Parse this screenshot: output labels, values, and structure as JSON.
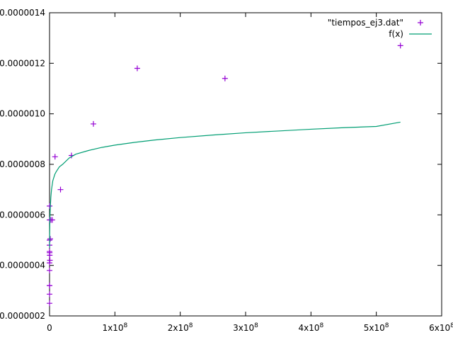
{
  "chart_data": {
    "type": "scatter",
    "title": "",
    "xlabel": "",
    "ylabel": "",
    "xlim": [
      0,
      600000000
    ],
    "ylim": [
      2e-07,
      1.4e-06
    ],
    "grid": false,
    "legend_position": "top-right",
    "x_ticks": [
      {
        "value": 0,
        "label": "0",
        "exp": ""
      },
      {
        "value": 100000000,
        "label": "1x10",
        "exp": "8"
      },
      {
        "value": 200000000,
        "label": "2x10",
        "exp": "8"
      },
      {
        "value": 300000000,
        "label": "3x10",
        "exp": "8"
      },
      {
        "value": 400000000,
        "label": "4x10",
        "exp": "8"
      },
      {
        "value": 500000000,
        "label": "5x10",
        "exp": "8"
      },
      {
        "value": 600000000,
        "label": "6x10",
        "exp": "8"
      }
    ],
    "y_ticks": [
      {
        "value": 2e-07,
        "label": "0.0000002"
      },
      {
        "value": 4e-07,
        "label": "0.0000004"
      },
      {
        "value": 6e-07,
        "label": "0.0000006"
      },
      {
        "value": 8e-07,
        "label": "0.0000008"
      },
      {
        "value": 1e-06,
        "label": "0.0000010"
      },
      {
        "value": 1.2e-06,
        "label": "0.0000012"
      },
      {
        "value": 1.4e-06,
        "label": "0.0000014"
      }
    ],
    "series": [
      {
        "name": "\"tiempos_ej3.dat\"",
        "kind": "points",
        "color": "#9400d3",
        "x": [
          64,
          128,
          256,
          512,
          1024,
          2048,
          4096,
          8192,
          16384,
          32768,
          65536,
          131072,
          262144,
          524288,
          1048576,
          2097152,
          4194304,
          8388608,
          16777216,
          33554432,
          67108864,
          134217728,
          268435456,
          536870912
        ],
        "y": [
          2.5e-07,
          2.86e-07,
          3.2e-07,
          3.2e-07,
          3.8e-07,
          4.1e-07,
          4.55e-07,
          4.8e-07,
          5e-07,
          5.8e-07,
          6.35e-07,
          4.5e-07,
          4.4e-07,
          4.2e-07,
          5.05e-07,
          5.8e-07,
          5.8e-07,
          8.3e-07,
          7e-07,
          8.35e-07,
          9.6e-07,
          1.18e-06,
          1.14e-06,
          1.27e-06
        ]
      },
      {
        "name": "f(x)",
        "kind": "line",
        "color": "#009e73",
        "x": [
          100000,
          200000,
          500000,
          1000000,
          2000000,
          3000000,
          5000000,
          8000000,
          10000000,
          15000000,
          20000000,
          30000000,
          40000000,
          60000000,
          80000000,
          100000000,
          130000000,
          160000000,
          200000000,
          250000000,
          300000000,
          350000000,
          400000000,
          450000000,
          500000000,
          536870912
        ],
        "y": [
          4.7e-07,
          5.2e-07,
          5.8e-07,
          6.2e-07,
          6.7e-07,
          7e-07,
          7.35e-07,
          7.6e-07,
          7.7e-07,
          7.9e-07,
          8e-07,
          8.25e-07,
          8.4e-07,
          8.55e-07,
          8.67e-07,
          8.76e-07,
          8.87e-07,
          8.96e-07,
          9.06e-07,
          9.16e-07,
          9.25e-07,
          9.32e-07,
          9.39e-07,
          9.45e-07,
          9.5e-07,
          9.67e-07
        ]
      }
    ]
  }
}
